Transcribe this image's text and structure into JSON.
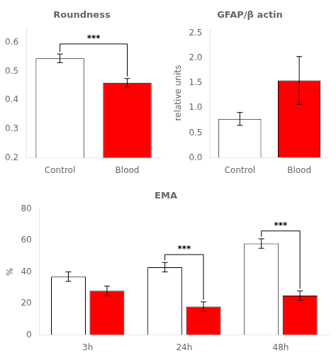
{
  "chart_data": [
    {
      "type": "bar",
      "title": "Roundness",
      "categories": [
        "Control",
        "Blood"
      ],
      "values": [
        0.545,
        0.46
      ],
      "errors": [
        0.015,
        0.015
      ],
      "colors": [
        "white",
        "red"
      ],
      "ylim": [
        0.2,
        0.65
      ],
      "yticks": [
        0.2,
        0.3,
        0.4,
        0.5,
        0.6
      ],
      "grid": false,
      "annotations": [
        {
          "text": "***",
          "x": [
            "Control",
            "Blood"
          ],
          "y": 0.595
        }
      ]
    },
    {
      "type": "bar",
      "title": "GFAP/β actin",
      "ylabel": "relative units",
      "categories": [
        "Control",
        "Blood"
      ],
      "values": [
        0.78,
        1.55
      ],
      "errors": [
        0.13,
        0.48
      ],
      "colors": [
        "white",
        "red"
      ],
      "ylim": [
        0.0,
        2.6
      ],
      "yticks": [
        {
          "value": 0,
          "label": "0.0"
        },
        0.5,
        {
          "value": 1,
          "label": "1.0"
        },
        1.5,
        {
          "value": 2,
          "label": "2.0"
        },
        2.5
      ],
      "grid": false
    },
    {
      "type": "bar",
      "title": "EMA",
      "ylabel": "%",
      "categories": [
        "3h",
        "24h",
        "48h"
      ],
      "series": [
        {
          "color": "white",
          "values": [
            37,
            43,
            58
          ],
          "errors": [
            3,
            3,
            3
          ]
        },
        {
          "color": "red",
          "values": [
            28,
            18,
            25
          ],
          "errors": [
            3,
            3,
            3
          ]
        }
      ],
      "ylim": [
        0,
        80
      ],
      "yticks": [
        0,
        20,
        40,
        60,
        80
      ],
      "grid": false,
      "annotations": [
        {
          "text": "***",
          "x": "24h",
          "y": 51
        },
        {
          "text": "***",
          "x": "48h",
          "y": 66
        }
      ]
    }
  ]
}
